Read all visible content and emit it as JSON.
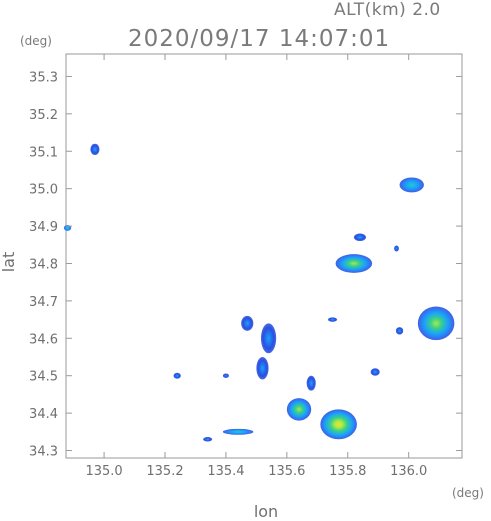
{
  "header": {
    "altitude_label": "ALT(km) 2.0",
    "timestamp": "2020/09/17 14:07:01",
    "y_unit": "(deg)",
    "x_unit": "(deg)"
  },
  "chart_data": {
    "type": "heatmap",
    "title": "2020/09/17 14:07:01",
    "xlabel": "lon",
    "ylabel": "lat",
    "xlim": [
      134.875,
      136.175
    ],
    "ylim": [
      34.28,
      35.36
    ],
    "xticks": [
      135.0,
      135.2,
      135.4,
      135.6,
      135.8,
      136.0
    ],
    "xtick_labels": [
      "135.0",
      "135.2",
      "135.4",
      "135.6",
      "135.8",
      "136.0"
    ],
    "yticks": [
      34.3,
      34.4,
      34.5,
      34.6,
      34.7,
      34.8,
      34.9,
      35.0,
      35.1,
      35.2,
      35.3
    ],
    "ytick_labels": [
      "34.3",
      "34.4",
      "34.5",
      "34.6",
      "34.7",
      "34.8",
      "34.9",
      "35.0",
      "35.1",
      "35.2",
      "35.3"
    ],
    "grid": false,
    "colors": {
      "low": "#2b4fe0",
      "mid": "#1aa0ff",
      "high": "#3ad08a",
      "peak": "#d8f040"
    },
    "echoes": [
      {
        "lon": 134.97,
        "lat": 35.105,
        "rlon": 0.015,
        "rlat": 0.015,
        "level": 1
      },
      {
        "lon": 134.88,
        "lat": 34.895,
        "rlon": 0.012,
        "rlat": 0.008,
        "level": 2
      },
      {
        "lon": 136.01,
        "lat": 35.01,
        "rlon": 0.04,
        "rlat": 0.02,
        "level": 2
      },
      {
        "lon": 135.84,
        "lat": 34.87,
        "rlon": 0.02,
        "rlat": 0.01,
        "level": 1
      },
      {
        "lon": 135.82,
        "lat": 34.8,
        "rlon": 0.06,
        "rlat": 0.025,
        "level": 3
      },
      {
        "lon": 136.09,
        "lat": 34.64,
        "rlon": 0.06,
        "rlat": 0.045,
        "level": 3
      },
      {
        "lon": 135.97,
        "lat": 34.62,
        "rlon": 0.012,
        "rlat": 0.01,
        "level": 1
      },
      {
        "lon": 135.89,
        "lat": 34.51,
        "rlon": 0.015,
        "rlat": 0.01,
        "level": 1
      },
      {
        "lon": 135.52,
        "lat": 34.52,
        "rlon": 0.02,
        "rlat": 0.03,
        "level": 1
      },
      {
        "lon": 135.54,
        "lat": 34.6,
        "rlon": 0.025,
        "rlat": 0.04,
        "level": 1
      },
      {
        "lon": 135.47,
        "lat": 34.64,
        "rlon": 0.02,
        "rlat": 0.02,
        "level": 1
      },
      {
        "lon": 135.64,
        "lat": 34.41,
        "rlon": 0.04,
        "rlat": 0.03,
        "level": 3
      },
      {
        "lon": 135.77,
        "lat": 34.37,
        "rlon": 0.06,
        "rlat": 0.04,
        "level": 4
      },
      {
        "lon": 135.44,
        "lat": 34.35,
        "rlon": 0.05,
        "rlat": 0.008,
        "level": 2
      },
      {
        "lon": 135.34,
        "lat": 34.33,
        "rlon": 0.015,
        "rlat": 0.006,
        "level": 1
      },
      {
        "lon": 135.24,
        "lat": 34.5,
        "rlon": 0.012,
        "rlat": 0.008,
        "level": 1
      },
      {
        "lon": 135.4,
        "lat": 34.5,
        "rlon": 0.01,
        "rlat": 0.006,
        "level": 1
      },
      {
        "lon": 135.75,
        "lat": 34.65,
        "rlon": 0.015,
        "rlat": 0.006,
        "level": 1
      },
      {
        "lon": 135.68,
        "lat": 34.48,
        "rlon": 0.015,
        "rlat": 0.02,
        "level": 1
      },
      {
        "lon": 135.96,
        "lat": 34.84,
        "rlon": 0.008,
        "rlat": 0.008,
        "level": 1
      }
    ]
  }
}
